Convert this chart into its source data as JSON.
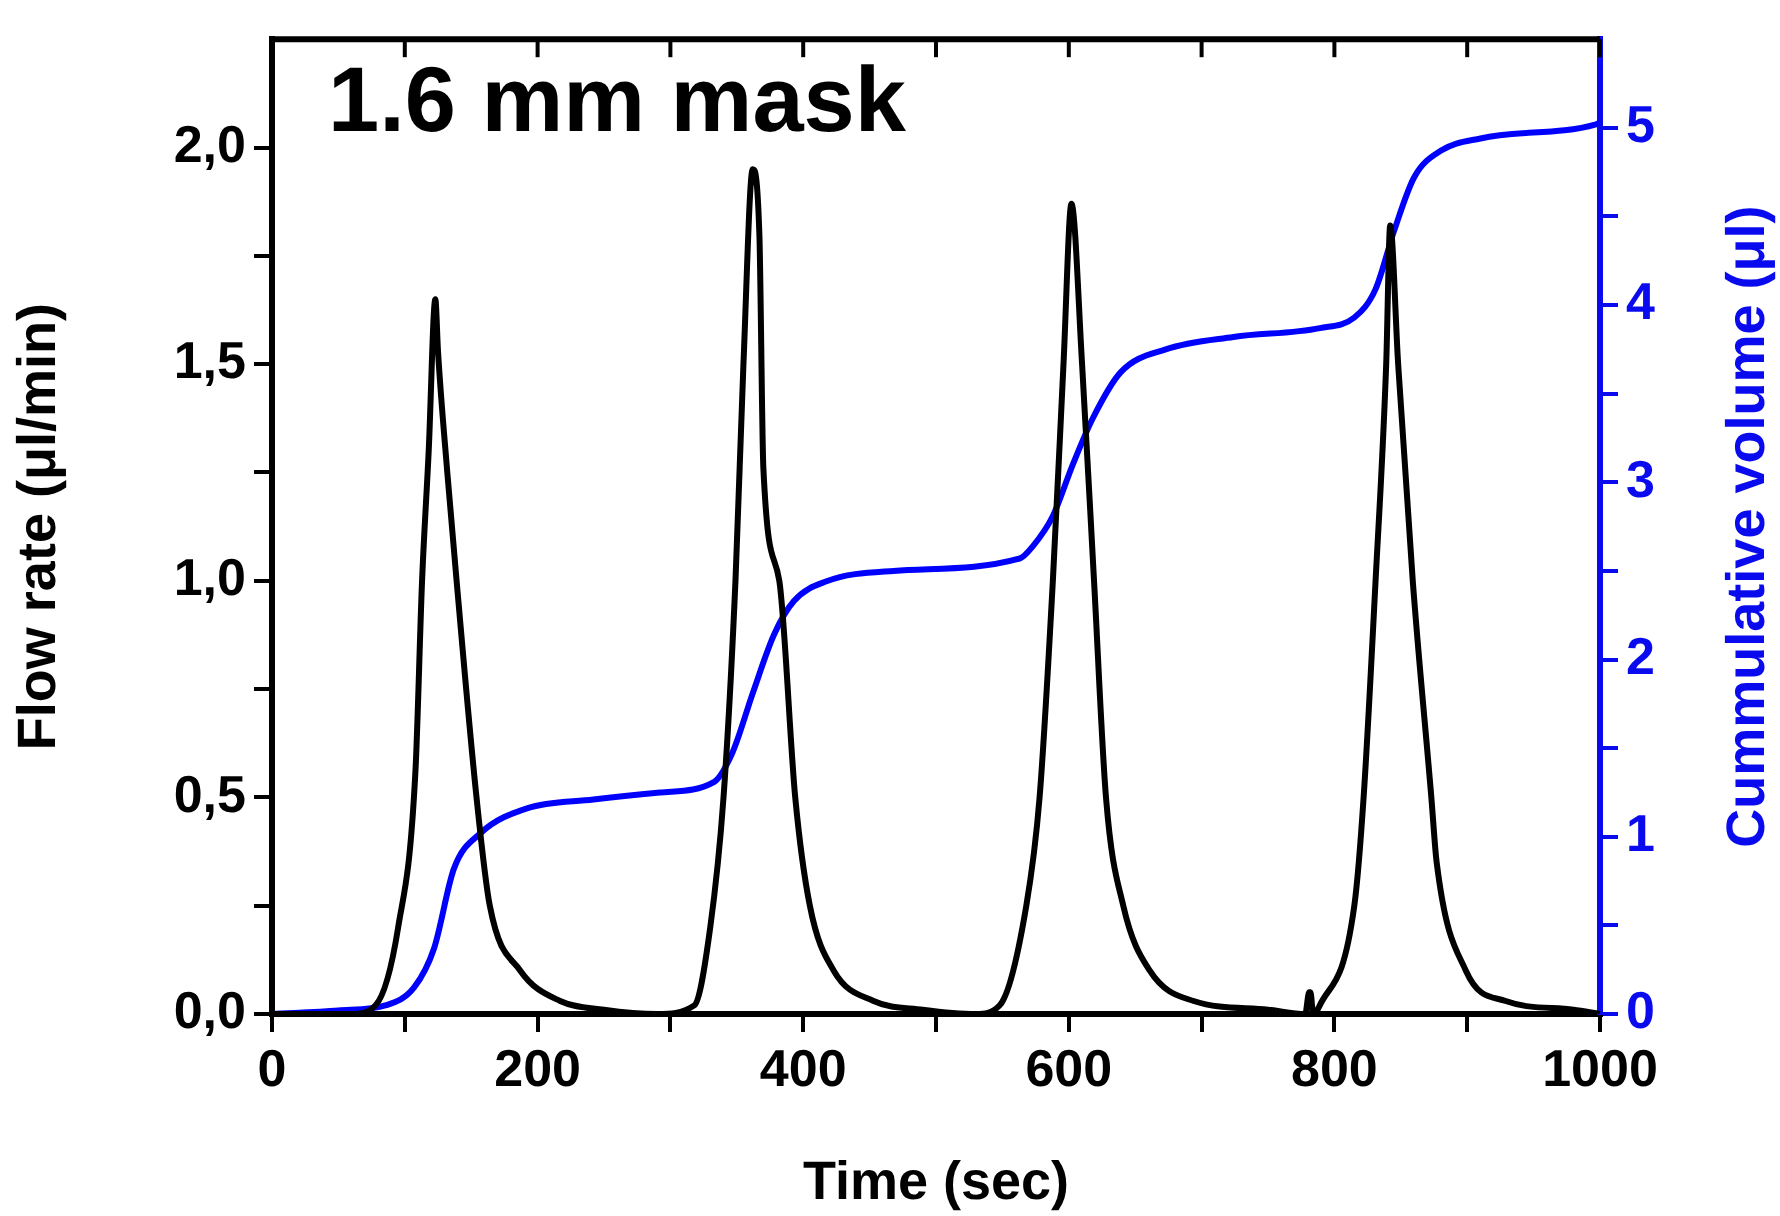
{
  "chart_data": {
    "type": "line",
    "title": "1.6 mm mask",
    "xlabel": "Time (sec)",
    "ylabel": "Flow rate (μl/min)",
    "y2label": "Cummulative volume (μl)",
    "xlim": [
      0,
      1000
    ],
    "xticks": [
      0,
      {
        "value": 100,
        "label": null
      },
      200,
      {
        "value": 300,
        "label": null
      },
      400,
      {
        "value": 500,
        "label": null
      },
      600,
      {
        "value": 700,
        "label": null
      },
      800,
      {
        "value": 900,
        "label": null
      },
      1000
    ],
    "ylim": [
      0,
      2.25
    ],
    "yticks": [
      {
        "value": 0,
        "label": "0,0"
      },
      {
        "value": 0.25,
        "label": null
      },
      {
        "value": 0.5,
        "label": "0,5"
      },
      {
        "value": 0.75,
        "label": null
      },
      {
        "value": 1,
        "label": "1,0"
      },
      {
        "value": 1.25,
        "label": null
      },
      {
        "value": 1.5,
        "label": "1,5"
      },
      {
        "value": 1.75,
        "label": null
      },
      {
        "value": 2,
        "label": "2,0"
      }
    ],
    "y2lim": [
      0,
      5.5
    ],
    "y2ticks": [
      0,
      {
        "value": 0.5,
        "label": null
      },
      1,
      {
        "value": 1.5,
        "label": null
      },
      2,
      {
        "value": 2.5,
        "label": null
      },
      3,
      {
        "value": 3.5,
        "label": null
      },
      4,
      {
        "value": 4.5,
        "label": null
      },
      5
    ],
    "grid": false,
    "legend": false,
    "marker": "none",
    "line_style": "solid",
    "series": [
      {
        "color": "#000000",
        "x": [
          0,
          60,
          78,
          95,
          108,
          113,
          118,
          123,
          125,
          132,
          139,
          154,
          164,
          187,
          217,
          250,
          290,
          318,
          330,
          340,
          349,
          355,
          362,
          367,
          370,
          382,
          394,
          405,
          423,
          453,
          490,
          530,
          548,
          568,
          578,
          588,
          596,
          602,
          610,
          619,
          628,
          641,
          661,
          694,
          750,
          778,
          781,
          782,
          784,
          789,
          815,
          822,
          831,
          839,
          842,
          848,
          859,
          873,
          877,
          899,
          929,
          980,
          1000
        ],
        "values": [
          0,
          0,
          0.02,
          0.2,
          0.56,
          1.0,
          1.3,
          1.65,
          1.53,
          1.25,
          1.0,
          0.5,
          0.25,
          0.1,
          0.03,
          0.01,
          0,
          0.02,
          0.2,
          0.5,
          1.0,
          1.5,
          1.95,
          1.8,
          1.26,
          1.0,
          0.5,
          0.25,
          0.1,
          0.03,
          0.01,
          0,
          0.02,
          0.25,
          0.5,
          1.0,
          1.5,
          1.87,
          1.5,
          1.0,
          0.5,
          0.25,
          0.1,
          0.03,
          0.01,
          0,
          0.05,
          0.05,
          0,
          0.02,
          0.25,
          0.5,
          1.0,
          1.5,
          1.82,
          1.5,
          1.0,
          0.5,
          0.35,
          0.1,
          0.03,
          0.01,
          0
        ]
      },
      {
        "color": "#0000ff",
        "axis": "y2",
        "x": [
          0,
          50,
          86,
          107,
          122,
          137,
          157,
          192,
          242,
          292,
          333,
          347,
          362,
          378,
          393,
          417,
          468,
          563,
          573,
          588,
          603,
          618,
          639,
          673,
          724,
          789,
          815,
          831,
          845,
          860,
          880,
          910,
          997,
          1000
        ],
        "values": [
          0,
          0.02,
          0.05,
          0.15,
          0.37,
          0.82,
          1.02,
          1.16,
          1.21,
          1.25,
          1.31,
          1.48,
          1.81,
          2.14,
          2.33,
          2.44,
          2.5,
          2.57,
          2.64,
          2.81,
          3.1,
          3.36,
          3.62,
          3.75,
          3.82,
          3.87,
          3.93,
          4.09,
          4.42,
          4.72,
          4.87,
          4.94,
          5.02,
          5.03
        ]
      }
    ]
  }
}
